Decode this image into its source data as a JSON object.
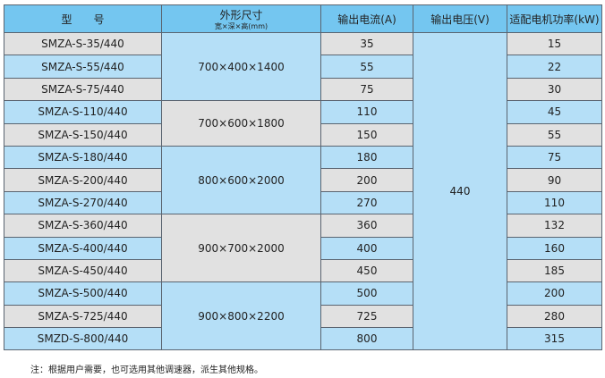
{
  "headers": {
    "model": "型　　号",
    "dims": "外形尺寸",
    "dims_sub": "宽×深×高(mm)",
    "current": "输出电流(A)",
    "voltage": "输出电压(V)",
    "power": "适配电机功率(kW)"
  },
  "voltage": "440",
  "groups": [
    "700×400×1400",
    "700×600×1800",
    "800×600×2000",
    "900×700×2000",
    "900×800×2200"
  ],
  "rows": [
    {
      "model": "SMZA-S-35/440",
      "current": "35",
      "power": "15"
    },
    {
      "model": "SMZA-S-55/440",
      "current": "55",
      "power": "22"
    },
    {
      "model": "SMZA-S-75/440",
      "current": "75",
      "power": "30"
    },
    {
      "model": "SMZA-S-110/440",
      "current": "110",
      "power": "45"
    },
    {
      "model": "SMZA-S-150/440",
      "current": "150",
      "power": "55"
    },
    {
      "model": "SMZA-S-180/440",
      "current": "180",
      "power": "75"
    },
    {
      "model": "SMZA-S-200/440",
      "current": "200",
      "power": "90"
    },
    {
      "model": "SMZA-S-270/440",
      "current": "270",
      "power": "110"
    },
    {
      "model": "SMZA-S-360/440",
      "current": "360",
      "power": "132"
    },
    {
      "model": "SMZA-S-400/440",
      "current": "400",
      "power": "160"
    },
    {
      "model": "SMZA-S-450/440",
      "current": "450",
      "power": "185"
    },
    {
      "model": "SMZA-S-500/440",
      "current": "500",
      "power": "200"
    },
    {
      "model": "SMZA-S-725/440",
      "current": "725",
      "power": "280"
    },
    {
      "model": "SMZD-S-800/440",
      "current": "800",
      "power": "315"
    }
  ],
  "note": "注：根据用户需要，也可选用其他调速器，派生其他规格。",
  "colors": {
    "header": "#74c6f0",
    "blue": "#b5dff7",
    "gray": "#e1e1e1"
  }
}
